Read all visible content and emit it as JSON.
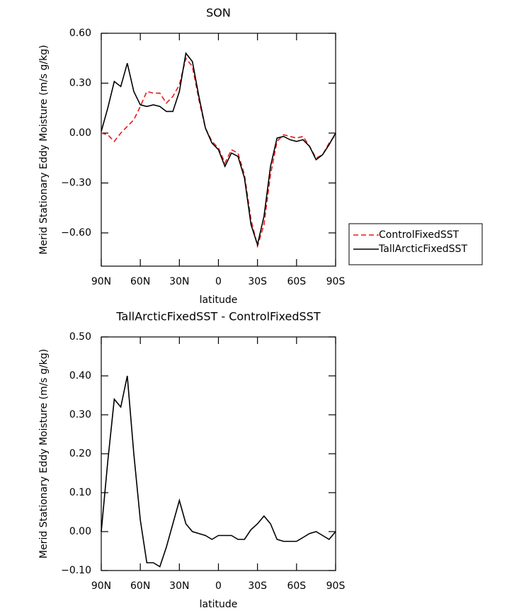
{
  "chart_data": [
    {
      "type": "line",
      "title": "SON",
      "ylabel": "Merid Stationary Eddy Moisture (m/s g/kg)",
      "xlabel": "latitude",
      "x": [
        90,
        85,
        80,
        75,
        70,
        65,
        60,
        55,
        50,
        45,
        40,
        35,
        30,
        25,
        20,
        15,
        10,
        5,
        0,
        -5,
        -10,
        -15,
        -20,
        -25,
        -30,
        -35,
        -40,
        -45,
        -50,
        -55,
        -60,
        -65,
        -70,
        -75,
        -80,
        -85,
        -90
      ],
      "xlim": [
        90,
        -90
      ],
      "xticks": [
        {
          "value": 90,
          "label": "90N"
        },
        {
          "value": 60,
          "label": "60N"
        },
        {
          "value": 30,
          "label": "30N"
        },
        0,
        {
          "value": -30,
          "label": "30S"
        },
        {
          "value": -60,
          "label": "60S"
        },
        {
          "value": -90,
          "label": "90S"
        }
      ],
      "ylim": [
        -0.8,
        0.6
      ],
      "yticks": [
        {
          "value": 0.6,
          "label": "0.60"
        },
        {
          "value": 0.3,
          "label": "0.30"
        },
        {
          "value": 0,
          "label": "0.00"
        },
        {
          "value": -0.3,
          "label": "−0.30"
        },
        {
          "value": -0.6,
          "label": "−0.60"
        }
      ],
      "legend": "right",
      "series": [
        {
          "name": "ControlFixedSST",
          "color": "#e8191c",
          "dash": true,
          "values": [
            0.0,
            -0.01,
            -0.05,
            0.0,
            0.04,
            0.08,
            0.16,
            0.25,
            0.24,
            0.24,
            0.18,
            0.22,
            0.29,
            0.45,
            0.4,
            0.2,
            0.03,
            -0.05,
            -0.09,
            -0.18,
            -0.1,
            -0.12,
            -0.25,
            -0.52,
            -0.68,
            -0.55,
            -0.25,
            -0.05,
            -0.01,
            -0.02,
            -0.03,
            -0.02,
            -0.08,
            -0.15,
            -0.13,
            -0.06,
            -0.01
          ]
        },
        {
          "name": "TallArcticFixedSST",
          "color": "#000000",
          "dash": false,
          "values": [
            0.01,
            0.15,
            0.31,
            0.28,
            0.42,
            0.25,
            0.17,
            0.16,
            0.17,
            0.16,
            0.13,
            0.13,
            0.25,
            0.48,
            0.43,
            0.22,
            0.03,
            -0.06,
            -0.1,
            -0.2,
            -0.12,
            -0.14,
            -0.27,
            -0.55,
            -0.67,
            -0.5,
            -0.2,
            -0.03,
            -0.02,
            -0.04,
            -0.05,
            -0.04,
            -0.08,
            -0.16,
            -0.13,
            -0.07,
            0.0
          ]
        }
      ]
    },
    {
      "type": "line",
      "title": "TallArcticFixedSST - ControlFixedSST",
      "ylabel": "Merid Stationary Eddy Moisture (m/s g/kg)",
      "xlabel": "latitude",
      "x": [
        90,
        85,
        80,
        75,
        70,
        65,
        60,
        55,
        50,
        45,
        40,
        35,
        30,
        25,
        20,
        15,
        10,
        5,
        0,
        -5,
        -10,
        -15,
        -20,
        -25,
        -30,
        -35,
        -40,
        -45,
        -50,
        -55,
        -60,
        -65,
        -70,
        -75,
        -80,
        -85,
        -90
      ],
      "xlim": [
        90,
        -90
      ],
      "xticks": [
        {
          "value": 90,
          "label": "90N"
        },
        {
          "value": 60,
          "label": "60N"
        },
        {
          "value": 30,
          "label": "30N"
        },
        0,
        {
          "value": -30,
          "label": "30S"
        },
        {
          "value": -60,
          "label": "60S"
        },
        {
          "value": -90,
          "label": "90S"
        }
      ],
      "ylim": [
        -0.1,
        0.5
      ],
      "yticks": [
        {
          "value": 0.5,
          "label": "0.50"
        },
        {
          "value": 0.4,
          "label": "0.40"
        },
        {
          "value": 0.3,
          "label": "0.30"
        },
        {
          "value": 0.2,
          "label": "0.20"
        },
        {
          "value": 0.1,
          "label": "0.10"
        },
        {
          "value": 0,
          "label": "0.00"
        },
        {
          "value": -0.1,
          "label": "−0.10"
        }
      ],
      "series": [
        {
          "color": "#000000",
          "dash": false,
          "values": [
            0.0,
            0.18,
            0.34,
            0.32,
            0.4,
            0.2,
            0.03,
            -0.08,
            -0.08,
            -0.09,
            -0.04,
            0.02,
            0.08,
            0.02,
            0.0,
            -0.005,
            -0.01,
            -0.02,
            -0.01,
            -0.01,
            -0.01,
            -0.02,
            -0.02,
            0.005,
            0.02,
            0.04,
            0.02,
            -0.02,
            -0.025,
            -0.025,
            -0.025,
            -0.015,
            -0.005,
            0.0,
            -0.01,
            -0.02,
            0.0
          ]
        }
      ]
    }
  ]
}
